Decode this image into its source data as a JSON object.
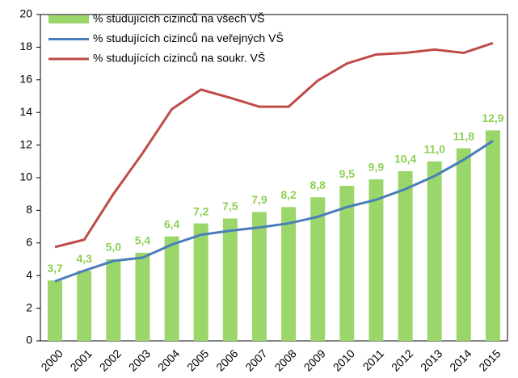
{
  "chart_data": {
    "type": "combo",
    "categories": [
      "2000",
      "2001",
      "2002",
      "2003",
      "2004",
      "2005",
      "2006",
      "2007",
      "2008",
      "2009",
      "2010",
      "2011",
      "2012",
      "2013",
      "2014",
      "2015"
    ],
    "series": [
      {
        "name": "% studujících cizinců na všech VŠ",
        "type": "bar",
        "color": "#9bd66a",
        "values": [
          3.7,
          4.3,
          5.0,
          5.4,
          6.4,
          7.2,
          7.5,
          7.9,
          8.2,
          8.8,
          9.5,
          9.9,
          10.4,
          11.0,
          11.8,
          12.9
        ],
        "value_labels": [
          "3,7",
          "4,3",
          "5,0",
          "5,4",
          "6,4",
          "7,2",
          "7,5",
          "7,9",
          "8,2",
          "8,8",
          "9,5",
          "9,9",
          "10,4",
          "11,0",
          "11,8",
          "12,9"
        ]
      },
      {
        "name": "% studujících cizinců na veřejných VŠ",
        "type": "line",
        "color": "#4a7ebb",
        "values": [
          3.65,
          4.3,
          4.9,
          5.1,
          5.9,
          6.5,
          6.75,
          6.95,
          7.2,
          7.6,
          8.2,
          8.65,
          9.3,
          10.1,
          11.1,
          12.25
        ]
      },
      {
        "name": "% studujících cizinců na soukr. VŠ",
        "type": "line",
        "color": "#be4b48",
        "values": [
          5.75,
          6.2,
          9.0,
          11.5,
          14.2,
          15.4,
          14.9,
          14.35,
          14.35,
          15.95,
          17.0,
          17.55,
          17.65,
          17.85,
          17.65,
          18.25
        ]
      }
    ],
    "ylim": [
      0,
      20
    ],
    "yticks": [
      0,
      2,
      4,
      6,
      8,
      10,
      12,
      14,
      16,
      18,
      20
    ],
    "grid": false
  }
}
